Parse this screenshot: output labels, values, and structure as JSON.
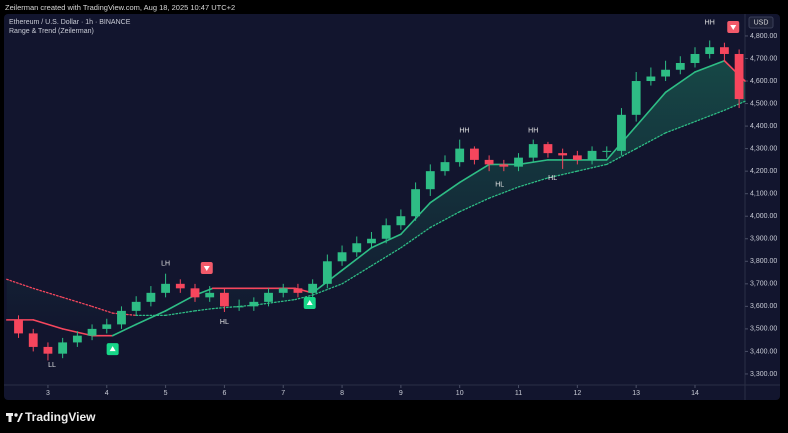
{
  "header": "Zeilerman created with TradingView.com, Aug 18, 2025 10:47 UTC+2",
  "footer": "TradingView",
  "chart_data": {
    "type": "candlestick",
    "title": "Ethereum / U.S. Dollar · 1h · BINANCE",
    "subtitle": "Range & Trend (Zeilerman)",
    "currency": "USD",
    "x": [
      2.5,
      2.75,
      3,
      3.25,
      3.5,
      3.75,
      4,
      4.25,
      4.5,
      4.75,
      5,
      5.25,
      5.5,
      5.75,
      6,
      6.25,
      6.5,
      6.75,
      7,
      7.25,
      7.5,
      7.75,
      8,
      8.25,
      8.5,
      8.75,
      9,
      9.25,
      9.5,
      9.75,
      10,
      10.25,
      10.5,
      10.75,
      11,
      11.25,
      11.5,
      11.75,
      12,
      12.25,
      12.5,
      12.75,
      13,
      13.25,
      13.5,
      13.75,
      14,
      14.25,
      14.5,
      14.75
    ],
    "open": [
      3540,
      3480,
      3420,
      3390,
      3440,
      3470,
      3500,
      3520,
      3580,
      3620,
      3660,
      3700,
      3680,
      3640,
      3660,
      3600,
      3600,
      3620,
      3660,
      3680,
      3660,
      3700,
      3800,
      3840,
      3880,
      3900,
      3960,
      4000,
      4120,
      4200,
      4240,
      4300,
      4250,
      4230,
      4220,
      4260,
      4320,
      4280,
      4270,
      4250,
      4290,
      4290,
      4450,
      4600,
      4620,
      4650,
      4680,
      4720,
      4750,
      4720
    ],
    "high": [
      3560,
      3500,
      3440,
      3460,
      3490,
      3520,
      3545,
      3600,
      3645,
      3690,
      3745,
      3720,
      3700,
      3690,
      3680,
      3630,
      3640,
      3680,
      3700,
      3700,
      3720,
      3830,
      3870,
      3910,
      3930,
      3990,
      4030,
      4150,
      4230,
      4270,
      4340,
      4310,
      4270,
      4250,
      4280,
      4340,
      4330,
      4300,
      4290,
      4310,
      4310,
      4480,
      4640,
      4660,
      4690,
      4710,
      4750,
      4780,
      4770,
      4740
    ],
    "low": [
      3460,
      3400,
      3360,
      3370,
      3420,
      3450,
      3480,
      3500,
      3560,
      3600,
      3640,
      3660,
      3620,
      3620,
      3575,
      3580,
      3580,
      3600,
      3640,
      3640,
      3640,
      3680,
      3780,
      3820,
      3860,
      3880,
      3940,
      3980,
      4090,
      4180,
      4220,
      4230,
      4200,
      4200,
      4200,
      4240,
      4260,
      4210,
      4230,
      4230,
      4260,
      4270,
      4420,
      4580,
      4600,
      4630,
      4660,
      4700,
      4690,
      4480
    ],
    "close": [
      3480,
      3420,
      3390,
      3440,
      3470,
      3500,
      3520,
      3580,
      3620,
      3660,
      3700,
      3680,
      3640,
      3660,
      3600,
      3600,
      3620,
      3660,
      3680,
      3660,
      3700,
      3800,
      3840,
      3880,
      3900,
      3960,
      4000,
      4120,
      4200,
      4240,
      4300,
      4250,
      4230,
      4220,
      4260,
      4320,
      4280,
      4270,
      4250,
      4290,
      4290,
      4450,
      4600,
      4620,
      4650,
      4680,
      4720,
      4750,
      4720,
      4520
    ],
    "up_color": "#2ebd85",
    "down_color": "#f6465d",
    "lines": [
      {
        "style": "solid",
        "x": [
          2.3,
          2.75,
          3.25,
          3.75,
          4.1,
          4.5,
          5,
          5.5,
          5.8,
          6.5,
          7.2,
          7.5,
          8,
          8.5,
          9,
          9.5,
          10,
          10.5,
          11,
          11.5,
          12,
          12.5,
          13,
          13.5,
          14,
          14.5,
          14.85
        ],
        "values": [
          3540,
          3540,
          3500,
          3470,
          3470,
          3520,
          3580,
          3650,
          3680,
          3680,
          3680,
          3660,
          3760,
          3860,
          3920,
          4060,
          4150,
          4230,
          4230,
          4250,
          4250,
          4250,
          4400,
          4550,
          4640,
          4690,
          4600
        ],
        "trend": [
          "down",
          "down",
          "down",
          "down",
          "up",
          "up",
          "up",
          "up",
          "down",
          "down",
          "down",
          "up",
          "up",
          "up",
          "up",
          "up",
          "up",
          "up",
          "up",
          "up",
          "up",
          "up",
          "up",
          "up",
          "up",
          "down",
          "down"
        ]
      },
      {
        "style": "dotted",
        "x": [
          2.3,
          2.75,
          3.25,
          3.75,
          4.1,
          4.5,
          5,
          5.5,
          5.8,
          6.5,
          7.2,
          7.5,
          8,
          8.5,
          9,
          9.5,
          10,
          10.5,
          11,
          11.5,
          12,
          12.5,
          13,
          13.5,
          14,
          14.5,
          14.85
        ],
        "values": [
          3720,
          3680,
          3640,
          3600,
          3570,
          3560,
          3560,
          3580,
          3590,
          3605,
          3630,
          3650,
          3700,
          3780,
          3860,
          3950,
          4020,
          4080,
          4130,
          4170,
          4200,
          4230,
          4300,
          4370,
          4420,
          4470,
          4510
        ],
        "trend": [
          "down",
          "down",
          "down",
          "down",
          "down",
          "up",
          "up",
          "up",
          "up",
          "up",
          "up",
          "up",
          "up",
          "up",
          "up",
          "up",
          "up",
          "up",
          "up",
          "up",
          "up",
          "up",
          "up",
          "up",
          "up",
          "up",
          "up"
        ]
      }
    ],
    "annotations": [
      {
        "text": "LL",
        "x": 3.07,
        "y": 3340
      },
      {
        "text": "LH",
        "x": 5.0,
        "y": 3790
      },
      {
        "text": "HL",
        "x": 6.0,
        "y": 3530
      },
      {
        "text": "HH",
        "x": 10.08,
        "y": 4380
      },
      {
        "text": "HL",
        "x": 10.68,
        "y": 4140
      },
      {
        "text": "HH",
        "x": 11.25,
        "y": 4380
      },
      {
        "text": "HL",
        "x": 11.58,
        "y": 4170
      },
      {
        "text": "HH",
        "x": 14.25,
        "y": 4860
      }
    ],
    "signals": [
      {
        "type": "buy",
        "x": 4.1,
        "y": 3410
      },
      {
        "type": "sell",
        "x": 5.7,
        "y": 3770
      },
      {
        "type": "buy",
        "x": 7.45,
        "y": 3615
      },
      {
        "type": "sell",
        "x": 14.65,
        "y": 4840
      }
    ],
    "xlim": [
      2.27,
      14.85
    ],
    "xticks": [
      3,
      4,
      5,
      6,
      7,
      8,
      9,
      10,
      11,
      12,
      13,
      14
    ],
    "ylim": [
      3251,
      4893
    ],
    "yticks": [
      {
        "value": 3300,
        "label": "3,300.00"
      },
      {
        "value": 3400,
        "label": "3,400.00"
      },
      {
        "value": 3500,
        "label": "3,500.00"
      },
      {
        "value": 3600,
        "label": "3,600.00"
      },
      {
        "value": 3700,
        "label": "3,700.00"
      },
      {
        "value": 3800,
        "label": "3,800.00"
      },
      {
        "value": 3900,
        "label": "3,900.00"
      },
      {
        "value": 4000,
        "label": "4,000.00"
      },
      {
        "value": 4100,
        "label": "4,100.00"
      },
      {
        "value": 4200,
        "label": "4,200.00"
      },
      {
        "value": 4300,
        "label": "4,300.00"
      },
      {
        "value": 4400,
        "label": "4,400.00"
      },
      {
        "value": 4500,
        "label": "4,500.00"
      },
      {
        "value": 4600,
        "label": "4,600.00"
      },
      {
        "value": 4700,
        "label": "4,700.00"
      },
      {
        "value": 4800,
        "label": "4,800.00"
      }
    ]
  }
}
